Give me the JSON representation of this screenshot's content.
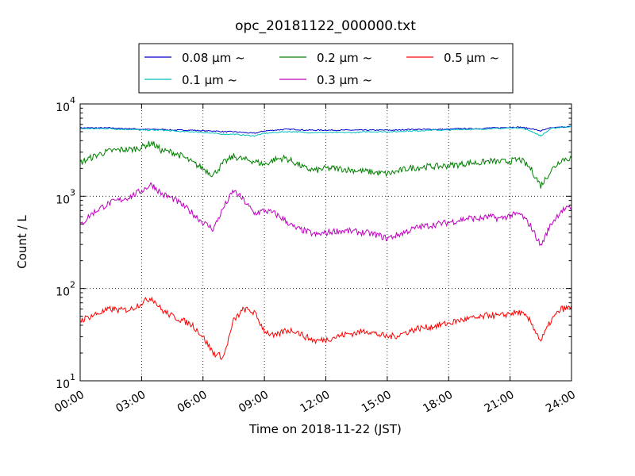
{
  "chart_data": {
    "type": "line",
    "title": "opc_20181122_000000.txt",
    "xlabel": "Time on 2018-11-22 (JST)",
    "ylabel": "Count / L",
    "xscale": "time",
    "yscale": "log",
    "xlim": [
      0,
      24
    ],
    "ylim": [
      10,
      10000
    ],
    "grid": true,
    "legend_position": "top-center-outside",
    "x_ticks": [
      "00:00",
      "03:00",
      "06:00",
      "09:00",
      "12:00",
      "15:00",
      "18:00",
      "21:00",
      "24:00"
    ],
    "y_ticks": [
      {
        "base": "10",
        "exp": "1"
      },
      {
        "base": "10",
        "exp": "2"
      },
      {
        "base": "10",
        "exp": "3"
      },
      {
        "base": "10",
        "exp": "4"
      }
    ],
    "x": [
      0,
      0.5,
      1,
      1.5,
      2,
      2.5,
      3,
      3.5,
      4,
      4.5,
      5,
      5.5,
      6,
      6.5,
      7,
      7.5,
      8,
      8.5,
      9,
      9.5,
      10,
      10.5,
      11,
      11.5,
      12,
      12.5,
      13,
      13.5,
      14,
      14.5,
      15,
      15.5,
      16,
      16.5,
      17,
      17.5,
      18,
      18.5,
      19,
      19.5,
      20,
      20.5,
      21,
      21.5,
      22,
      22.5,
      23,
      23.5,
      24
    ],
    "series": [
      {
        "name": "0.08 μm ~",
        "color": "#0000cc",
        "values": [
          5500,
          5500,
          5500,
          5500,
          5400,
          5400,
          5300,
          5300,
          5300,
          5200,
          5200,
          5200,
          5100,
          5100,
          5000,
          5000,
          4900,
          4800,
          5100,
          5200,
          5300,
          5300,
          5200,
          5200,
          5200,
          5200,
          5200,
          5200,
          5200,
          5200,
          5200,
          5200,
          5300,
          5300,
          5300,
          5300,
          5300,
          5400,
          5400,
          5400,
          5500,
          5500,
          5600,
          5600,
          5400,
          5100,
          5500,
          5600,
          5700
        ]
      },
      {
        "name": "0.1 μm ~",
        "color": "#00bfbf",
        "values": [
          5400,
          5400,
          5400,
          5400,
          5300,
          5300,
          5200,
          5200,
          5200,
          5100,
          5000,
          5000,
          4900,
          4800,
          4700,
          4700,
          4600,
          4500,
          4800,
          4900,
          5000,
          5000,
          4900,
          4900,
          4900,
          4900,
          4900,
          4900,
          5000,
          5000,
          5000,
          5000,
          5100,
          5100,
          5200,
          5200,
          5200,
          5300,
          5300,
          5300,
          5400,
          5400,
          5500,
          5500,
          5100,
          4500,
          5400,
          5600,
          5700
        ]
      },
      {
        "name": "0.2 μm ~",
        "color": "#008000",
        "values": [
          2300,
          2600,
          2900,
          3100,
          3200,
          3200,
          3400,
          3800,
          3100,
          3000,
          2700,
          2300,
          2000,
          1700,
          2300,
          2700,
          2500,
          2400,
          2200,
          2500,
          2600,
          2300,
          2000,
          1900,
          2000,
          2000,
          1950,
          1900,
          1850,
          1800,
          1750,
          1850,
          2000,
          2050,
          2100,
          2100,
          2150,
          2200,
          2300,
          2300,
          2400,
          2350,
          2400,
          2500,
          2000,
          1300,
          1900,
          2500,
          2600
        ]
      },
      {
        "name": "0.3 μm ~",
        "color": "#bf00bf",
        "values": [
          480,
          630,
          750,
          850,
          920,
          1000,
          1150,
          1350,
          1050,
          950,
          800,
          650,
          520,
          440,
          750,
          1150,
          900,
          650,
          700,
          650,
          550,
          450,
          420,
          380,
          400,
          420,
          420,
          410,
          400,
          380,
          350,
          380,
          420,
          460,
          480,
          500,
          520,
          550,
          580,
          570,
          600,
          570,
          620,
          640,
          480,
          290,
          500,
          700,
          750
        ]
      },
      {
        "name": "0.5 μm ~",
        "color": "#ff0000",
        "values": [
          45,
          50,
          55,
          60,
          58,
          60,
          70,
          80,
          58,
          50,
          45,
          40,
          30,
          20,
          18,
          45,
          60,
          55,
          35,
          30,
          35,
          35,
          30,
          27,
          28,
          30,
          32,
          33,
          35,
          32,
          30,
          31,
          34,
          37,
          38,
          40,
          42,
          45,
          47,
          48,
          52,
          50,
          54,
          55,
          44,
          27,
          45,
          60,
          62
        ]
      }
    ]
  }
}
